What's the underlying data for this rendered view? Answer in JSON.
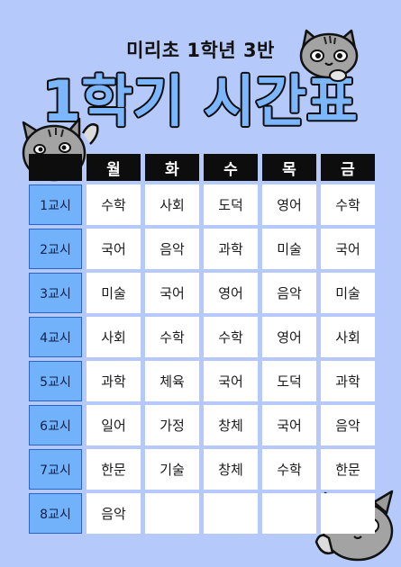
{
  "header": {
    "subtitle": "미리초 1학년 3반",
    "title": "1학기 시간표"
  },
  "table": {
    "days": [
      "월",
      "화",
      "수",
      "목",
      "금"
    ],
    "periods": [
      "1교시",
      "2교시",
      "3교시",
      "4교시",
      "5교시",
      "6교시",
      "7교시",
      "8교시"
    ],
    "rows": [
      [
        "수학",
        "사회",
        "도덕",
        "영어",
        "수학"
      ],
      [
        "국어",
        "음악",
        "과학",
        "미술",
        "국어"
      ],
      [
        "미술",
        "국어",
        "영어",
        "음악",
        "미술"
      ],
      [
        "사회",
        "수학",
        "수학",
        "영어",
        "사회"
      ],
      [
        "과학",
        "체육",
        "국어",
        "도덕",
        "과학"
      ],
      [
        "일어",
        "가정",
        "창체",
        "국어",
        "음악"
      ],
      [
        "한문",
        "기술",
        "창체",
        "수학",
        "한문"
      ],
      [
        "음악",
        "",
        "",
        "",
        ""
      ]
    ]
  },
  "colors": {
    "background": "#b5c9fb",
    "header_cell": "#0d0d0d",
    "period_cell": "#71b2fb",
    "title_fill": "#7bb6ff",
    "title_outline": "#0d0d0d"
  },
  "decorations": [
    "cat-top-right",
    "cat-left-waving",
    "cat-bottom-right-peeking"
  ]
}
